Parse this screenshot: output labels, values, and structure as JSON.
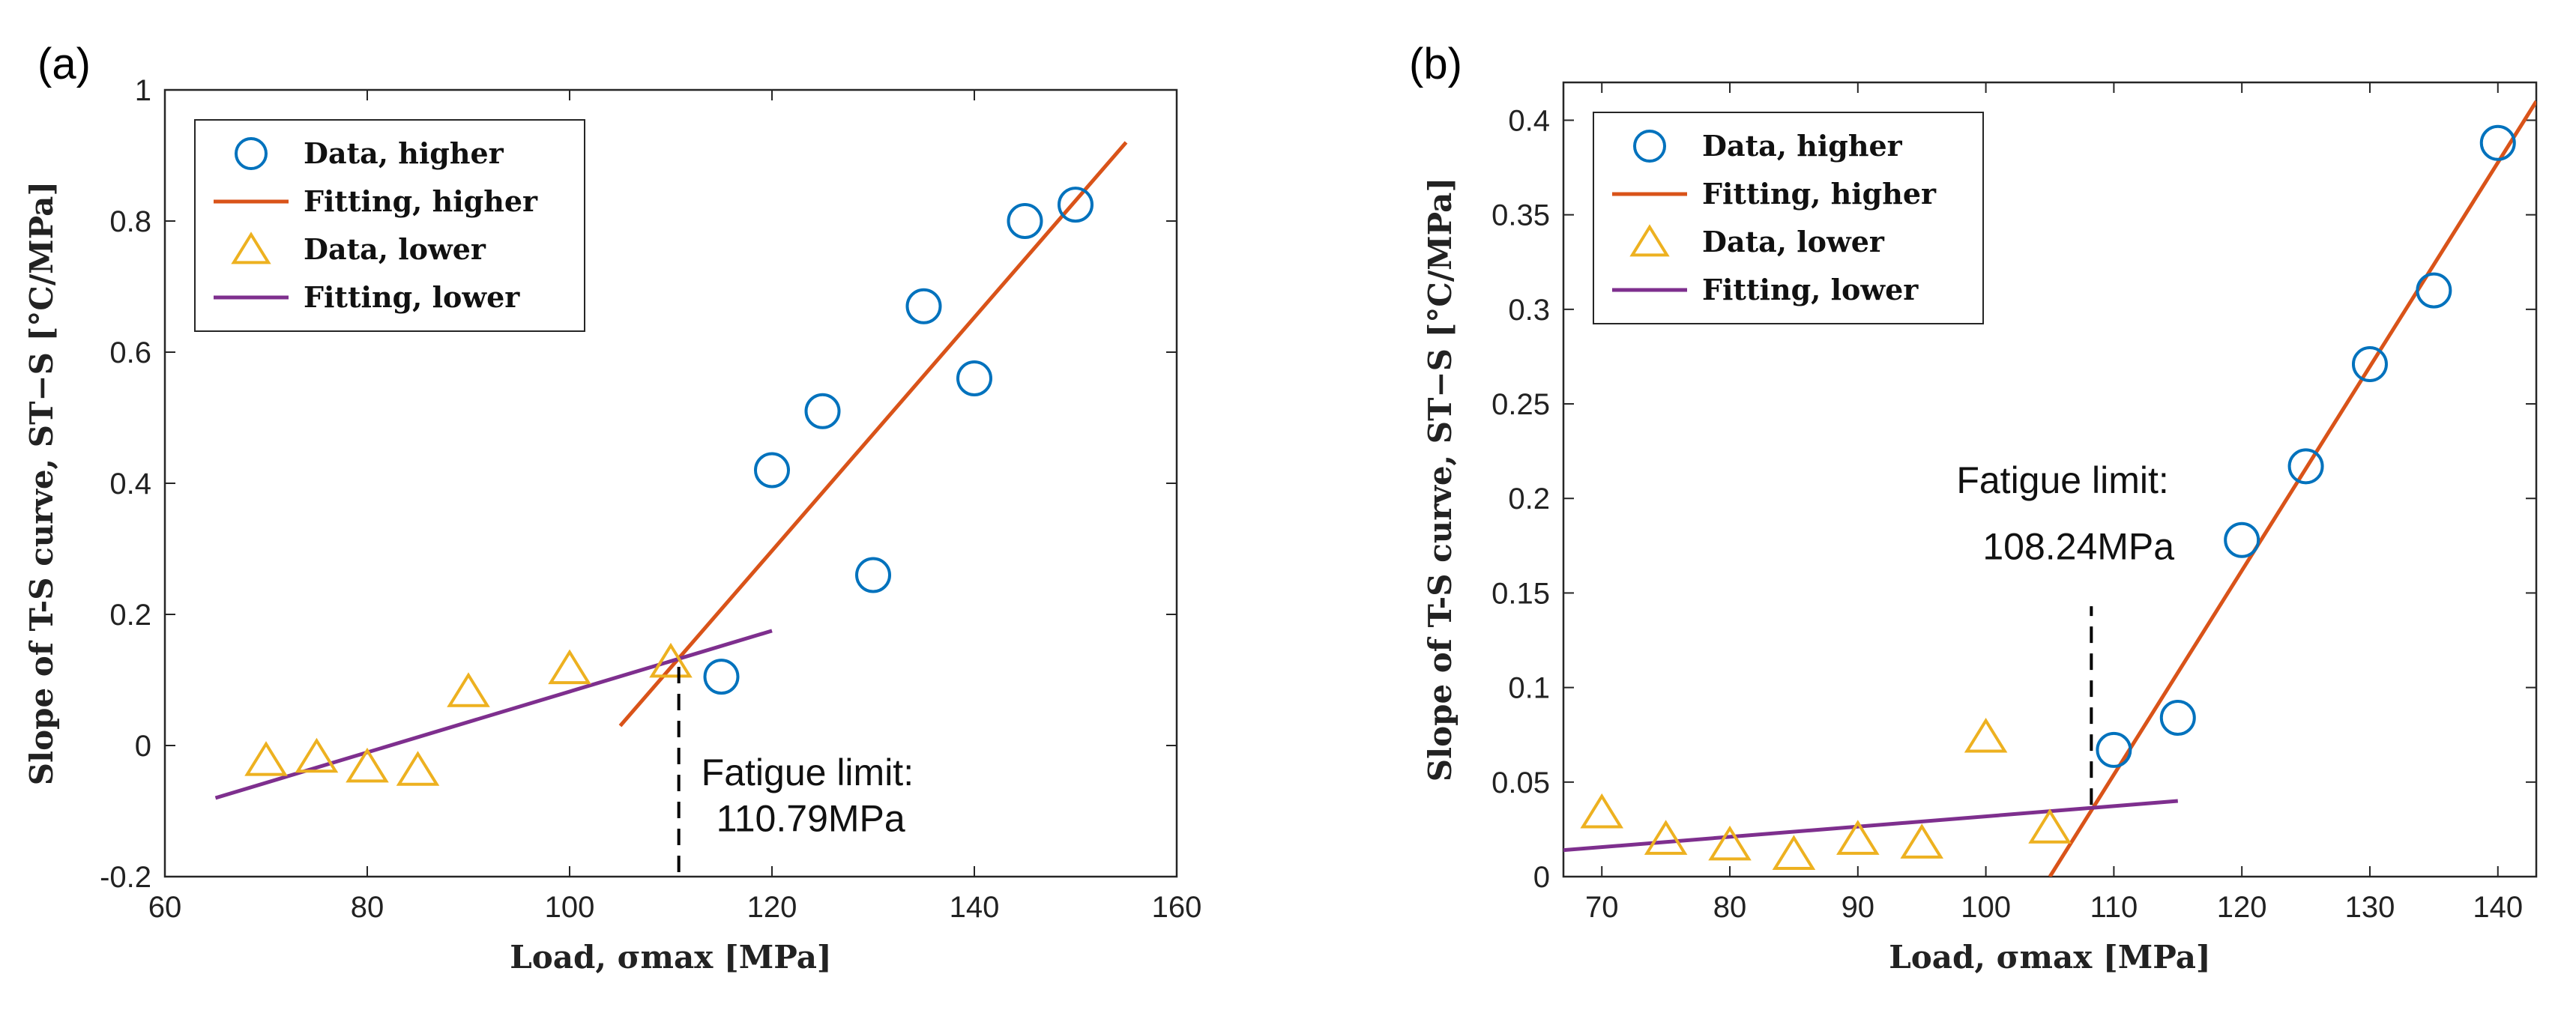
{
  "chart_data": [
    {
      "type": "scatter",
      "panel_label": "(a)",
      "xlabel": "Load, σmax [MPa]",
      "ylabel": "Slope of T-S curve, ST−S [°C/MPa]",
      "xlim": [
        60,
        160
      ],
      "ylim": [
        -0.2,
        1
      ],
      "xticks": [
        60,
        80,
        100,
        120,
        140,
        160
      ],
      "yticks": [
        -0.2,
        0,
        0.2,
        0.4,
        0.6,
        0.8,
        1
      ],
      "ytick_labels": [
        "-0.2",
        "0",
        "0.2",
        "0.4",
        "0.6",
        "0.8",
        "1"
      ],
      "legend_position": "top-left",
      "series": [
        {
          "name": "Data, higher",
          "kind": "marker",
          "marker": "circle",
          "color": "#0072BD",
          "x": [
            115,
            120,
            125,
            130,
            135,
            140,
            145,
            150
          ],
          "y": [
            0.105,
            0.42,
            0.51,
            0.26,
            0.67,
            0.56,
            0.8,
            0.825
          ]
        },
        {
          "name": "Fitting, higher",
          "kind": "line",
          "color": "#D95319",
          "x": [
            105,
            155
          ],
          "y": [
            0.03,
            0.92
          ]
        },
        {
          "name": "Data, lower",
          "kind": "marker",
          "marker": "triangle",
          "color": "#EDB120",
          "x": [
            70,
            75,
            80,
            85,
            90,
            100,
            110
          ],
          "y": [
            -0.025,
            -0.02,
            -0.035,
            -0.04,
            0.08,
            0.115,
            0.125
          ]
        },
        {
          "name": "Fitting, lower",
          "kind": "line",
          "color": "#7E2F8E",
          "x": [
            65,
            120
          ],
          "y": [
            -0.08,
            0.175
          ]
        }
      ],
      "annotation": {
        "line1": "Fatigue limit:",
        "line2": "110.79MPa",
        "x": 110.79,
        "y_from": 0.12,
        "y_to": -0.2
      }
    },
    {
      "type": "scatter",
      "panel_label": "(b)",
      "xlabel": "Load, σmax [MPa]",
      "ylabel": "Slope of T-S curve, ST−S [°C/MPa]",
      "xlim": [
        67,
        143
      ],
      "ylim": [
        0,
        0.42
      ],
      "xticks": [
        70,
        80,
        90,
        100,
        110,
        120,
        130,
        140
      ],
      "yticks": [
        0,
        0.05,
        0.1,
        0.15,
        0.2,
        0.25,
        0.3,
        0.35,
        0.4
      ],
      "ytick_labels": [
        "0",
        "0.05",
        "0.1",
        "0.15",
        "0.2",
        "0.25",
        "0.3",
        "0.35",
        "0.4"
      ],
      "legend_position": "top-left",
      "series": [
        {
          "name": "Data, higher",
          "kind": "marker",
          "marker": "circle",
          "color": "#0072BD",
          "x": [
            110,
            115,
            120,
            125,
            130,
            135,
            140
          ],
          "y": [
            0.067,
            0.084,
            0.178,
            0.217,
            0.271,
            0.31,
            0.388
          ]
        },
        {
          "name": "Fitting, higher",
          "kind": "line",
          "color": "#D95319",
          "x": [
            105,
            143
          ],
          "y": [
            0,
            0.41
          ]
        },
        {
          "name": "Data, lower",
          "kind": "marker",
          "marker": "triangle",
          "color": "#EDB120",
          "x": [
            70,
            75,
            80,
            85,
            90,
            95,
            100,
            105
          ],
          "y": [
            0.033,
            0.019,
            0.016,
            0.011,
            0.019,
            0.017,
            0.073,
            0.025
          ]
        },
        {
          "name": "Fitting, lower",
          "kind": "line",
          "color": "#7E2F8E",
          "x": [
            67,
            115
          ],
          "y": [
            0.014,
            0.04
          ]
        }
      ],
      "annotation": {
        "line1": "Fatigue limit:",
        "line2": "108.24MPa",
        "x": 108.24,
        "y_from": 0.038,
        "y_to": 0.143
      }
    }
  ]
}
